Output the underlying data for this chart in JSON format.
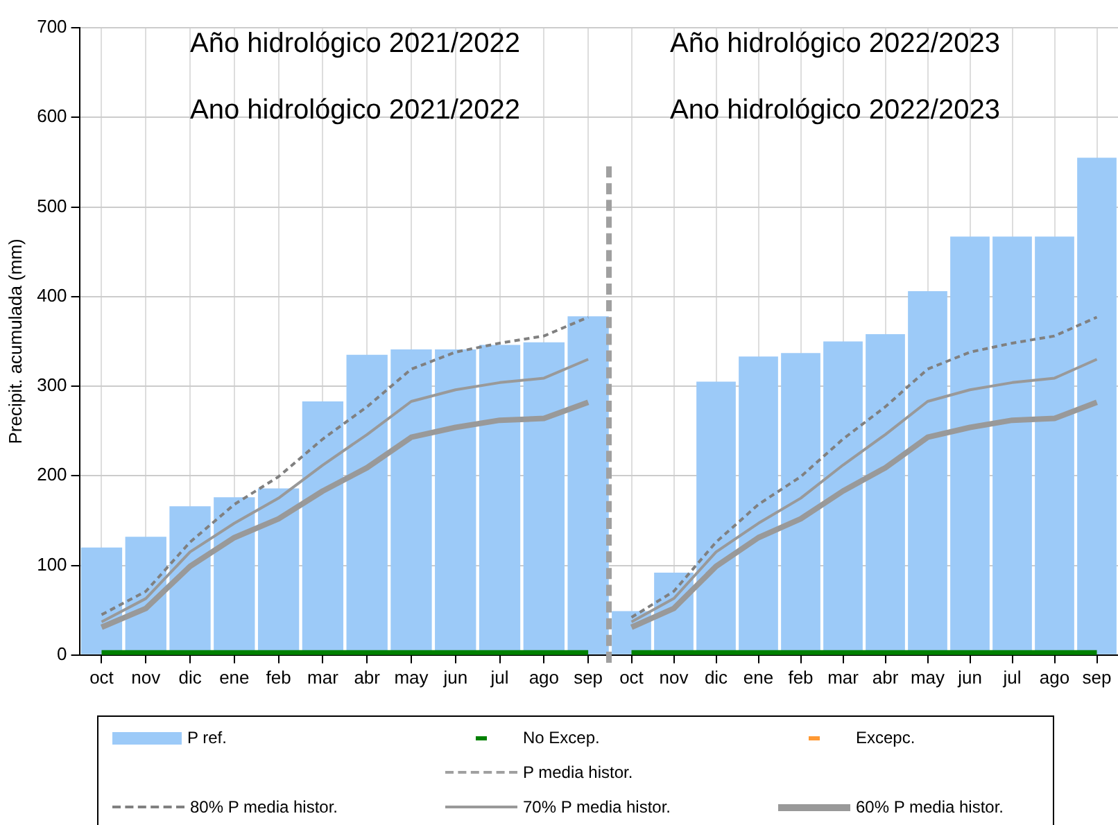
{
  "chart_data": [
    {
      "type": "bar",
      "title": "Año hidrológico 2021/2022",
      "subtitle": "Ano hidrológico 2021/2022",
      "ylabel": "Precipit. acumulada (mm)",
      "categories": [
        "oct",
        "nov",
        "dic",
        "ene",
        "feb",
        "mar",
        "abr",
        "may",
        "jun",
        "jul",
        "ago",
        "sep"
      ],
      "ylim": [
        0,
        700
      ],
      "yticks": [
        0,
        100,
        200,
        300,
        400,
        500,
        600,
        700
      ],
      "grid": true,
      "legend": "bottom",
      "series": [
        {
          "name": "P ref.",
          "color": "#9ccaf8",
          "values": [
            120,
            132,
            166,
            176,
            186,
            283,
            335,
            341,
            341,
            346,
            349,
            378
          ]
        },
        {
          "name": "No Excep.",
          "type": "line",
          "color": "#008000",
          "values": [
            0,
            0,
            0,
            0,
            0,
            0,
            0,
            0,
            0,
            0,
            0,
            0
          ]
        },
        {
          "name": "Excepc.",
          "type": "line",
          "color": "#ff9933",
          "values": [
            null,
            null,
            null,
            null,
            null,
            null,
            null,
            null,
            null,
            null,
            null,
            null
          ]
        },
        {
          "name": "P media histor.",
          "type": "line",
          "color": "#a0a0a0",
          "line_style": "dashed",
          "values": [
            null,
            null,
            null,
            null,
            null,
            null,
            null,
            null,
            null,
            null,
            null,
            null
          ]
        },
        {
          "name": "80%  P media histor.",
          "type": "line",
          "color": "#808080",
          "line_style": "dotted",
          "values": [
            45,
            71,
            126,
            168,
            199,
            241,
            277,
            319,
            338,
            348,
            356,
            377
          ]
        },
        {
          "name": "70%  P media histor.",
          "type": "line",
          "color": "#999999",
          "line_style": "solid",
          "values": [
            37,
            63,
            115,
            147,
            175,
            212,
            246,
            283,
            296,
            304,
            309,
            330
          ]
        },
        {
          "name": "60%  P media histor.",
          "type": "line",
          "color": "#999999",
          "line_style": "solid",
          "values": [
            31,
            52,
            99,
            131,
            152,
            183,
            209,
            243,
            254,
            262,
            264,
            282
          ]
        }
      ]
    },
    {
      "type": "bar",
      "title": "Año hidrológico 2022/2023",
      "subtitle": "Ano hidrológico 2022/2023",
      "categories": [
        "oct",
        "nov",
        "dic",
        "ene",
        "feb",
        "mar",
        "abr",
        "may",
        "jun",
        "jul",
        "ago",
        "sep"
      ],
      "ylim": [
        0,
        700
      ],
      "yticks": [
        0,
        100,
        200,
        300,
        400,
        500,
        600,
        700
      ],
      "grid": true,
      "tick_labels": "x",
      "series": [
        {
          "color": "#9ccaf8",
          "values": [
            49,
            92,
            305,
            333,
            337,
            350,
            358,
            406,
            467,
            467,
            467,
            555
          ]
        },
        {
          "type": "line",
          "color": "#008000",
          "values": [
            0,
            0,
            0,
            0,
            0,
            0,
            0,
            0,
            0,
            0,
            0,
            0
          ]
        },
        {
          "type": "line",
          "color": "#808080",
          "line_style": "dotted",
          "values": [
            42,
            71,
            126,
            168,
            199,
            241,
            277,
            319,
            338,
            348,
            356,
            377
          ]
        },
        {
          "type": "line",
          "color": "#999999",
          "line_style": "solid",
          "values": [
            37,
            63,
            115,
            147,
            175,
            212,
            246,
            283,
            296,
            304,
            309,
            330
          ]
        },
        {
          "type": "line",
          "color": "#999999",
          "line_style": "solid",
          "values": [
            31,
            52,
            99,
            131,
            152,
            183,
            209,
            243,
            254,
            262,
            264,
            282
          ]
        }
      ]
    }
  ]
}
